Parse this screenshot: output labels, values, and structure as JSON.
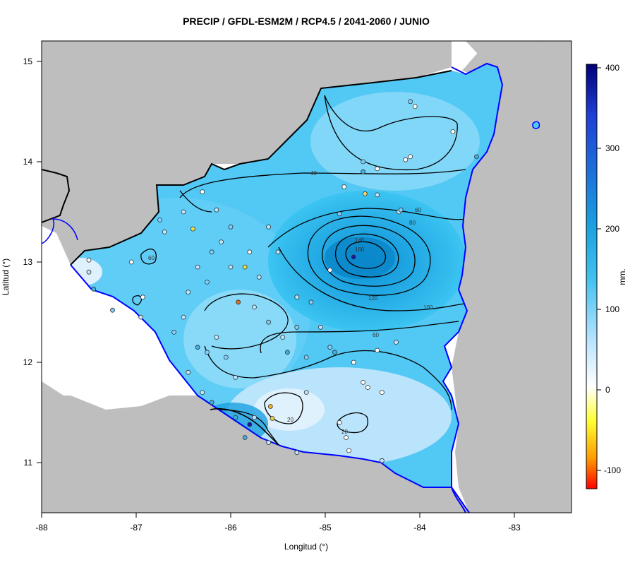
{
  "title": "PRECIP / GFDL-ESM2M / RCP4.5 / 2041-2060 / JUNIO",
  "xlabel": "Longitud (°)",
  "ylabel": "Latitud (°)",
  "x_ticks": [
    "-88",
    "-87",
    "-86",
    "-85",
    "-84",
    "-83"
  ],
  "y_ticks": [
    "11",
    "12",
    "13",
    "14",
    "15"
  ],
  "colorbar": {
    "label": "mm.",
    "ticks": [
      "400",
      "300",
      "200",
      "100",
      "0",
      "-100"
    ],
    "colors": [
      "#00007a",
      "#1f3fd6",
      "#1aa0e0",
      "#3fc0f0",
      "#bfe6ff",
      "#ffffff",
      "#ffff33",
      "#ff9900",
      "#ff0000"
    ]
  },
  "contour_labels": [
    "40",
    "60",
    "80",
    "100",
    "120",
    "140",
    "160",
    "60",
    "20",
    "20",
    "60"
  ],
  "colors": {
    "land_background": "#bebebe",
    "sea_background": "#ffffff",
    "coastline": "#0000ff",
    "border": "#000000"
  },
  "map_data": {
    "xlim": [
      -88,
      -82.4
    ],
    "ylim": [
      10.5,
      15.2
    ],
    "stations": [
      {
        "lon": -84.7,
        "lat": 13.05,
        "color": "#1a1aa0"
      },
      {
        "lon": -85.8,
        "lat": 11.38,
        "color": "#1a1aa0"
      },
      {
        "lon": -85.92,
        "lat": 12.6,
        "color": "#e07020"
      },
      {
        "lon": -85.58,
        "lat": 11.56,
        "color": "#f0b020"
      },
      {
        "lon": -85.56,
        "lat": 11.44,
        "color": "#f0d040"
      },
      {
        "lon": -86.4,
        "lat": 13.33,
        "color": "#f0e040"
      },
      {
        "lon": -85.85,
        "lat": 12.95,
        "color": "#f0e040"
      },
      {
        "lon": -84.58,
        "lat": 13.68,
        "color": "#f0d870"
      },
      {
        "lon": -84.95,
        "lat": 12.92,
        "color": "#ffffff"
      },
      {
        "lon": -84.1,
        "lat": 14.6,
        "color": "#7fd0ff"
      },
      {
        "lon": -84.05,
        "lat": 14.55,
        "color": "#ffffff"
      },
      {
        "lon": -83.65,
        "lat": 14.3,
        "color": "#ffffff"
      },
      {
        "lon": -84.1,
        "lat": 14.05,
        "color": "#ffffff"
      },
      {
        "lon": -84.15,
        "lat": 14.02,
        "color": "#ffffff"
      },
      {
        "lon": -84.6,
        "lat": 14.0,
        "color": "#7fd0ff"
      },
      {
        "lon": -84.45,
        "lat": 13.93,
        "color": "#ffffff"
      },
      {
        "lon": -84.6,
        "lat": 13.9,
        "color": "#3fb0e0"
      },
      {
        "lon": -84.8,
        "lat": 13.75,
        "color": "#ffffff"
      },
      {
        "lon": -84.45,
        "lat": 13.67,
        "color": "#bfe6ff"
      },
      {
        "lon": -84.22,
        "lat": 13.5,
        "color": "#bfe6ff"
      },
      {
        "lon": -84.2,
        "lat": 13.52,
        "color": "#7fd0ff"
      },
      {
        "lon": -84.85,
        "lat": 13.48,
        "color": "#7fd0ff"
      },
      {
        "lon": -83.4,
        "lat": 14.05,
        "color": "#3fb0e0"
      },
      {
        "lon": -87.5,
        "lat": 13.02,
        "color": "#ffffff"
      },
      {
        "lon": -87.5,
        "lat": 12.9,
        "color": "#bfe6ff"
      },
      {
        "lon": -87.45,
        "lat": 12.73,
        "color": "#3fb0e0"
      },
      {
        "lon": -87.05,
        "lat": 13.0,
        "color": "#ffffff"
      },
      {
        "lon": -86.93,
        "lat": 12.65,
        "color": "#ffffff"
      },
      {
        "lon": -86.95,
        "lat": 12.45,
        "color": "#bfe6ff"
      },
      {
        "lon": -87.25,
        "lat": 12.52,
        "color": "#7fd0ff"
      },
      {
        "lon": -86.75,
        "lat": 13.42,
        "color": "#7fd0ff"
      },
      {
        "lon": -86.7,
        "lat": 13.3,
        "color": "#bfe6ff"
      },
      {
        "lon": -86.5,
        "lat": 13.5,
        "color": "#bfe6ff"
      },
      {
        "lon": -86.3,
        "lat": 13.7,
        "color": "#ffffff"
      },
      {
        "lon": -86.15,
        "lat": 13.52,
        "color": "#bfe6ff"
      },
      {
        "lon": -86.0,
        "lat": 13.35,
        "color": "#7fd0ff"
      },
      {
        "lon": -86.1,
        "lat": 13.2,
        "color": "#bfe6ff"
      },
      {
        "lon": -86.2,
        "lat": 13.1,
        "color": "#7fd0ff"
      },
      {
        "lon": -86.35,
        "lat": 12.95,
        "color": "#bfe6ff"
      },
      {
        "lon": -86.0,
        "lat": 12.95,
        "color": "#bfe6ff"
      },
      {
        "lon": -85.8,
        "lat": 13.1,
        "color": "#ffffff"
      },
      {
        "lon": -85.7,
        "lat": 12.85,
        "color": "#bfe6ff"
      },
      {
        "lon": -85.75,
        "lat": 12.55,
        "color": "#bfe6ff"
      },
      {
        "lon": -85.6,
        "lat": 12.4,
        "color": "#7fd0ff"
      },
      {
        "lon": -85.45,
        "lat": 12.25,
        "color": "#bfe6ff"
      },
      {
        "lon": -85.3,
        "lat": 12.35,
        "color": "#7fd0ff"
      },
      {
        "lon": -85.4,
        "lat": 12.1,
        "color": "#3fb0e0"
      },
      {
        "lon": -85.2,
        "lat": 12.05,
        "color": "#7fd0ff"
      },
      {
        "lon": -85.05,
        "lat": 12.35,
        "color": "#bfe6ff"
      },
      {
        "lon": -84.95,
        "lat": 12.15,
        "color": "#7fd0ff"
      },
      {
        "lon": -84.9,
        "lat": 12.1,
        "color": "#3fb0e0"
      },
      {
        "lon": -84.7,
        "lat": 12.0,
        "color": "#ffffff"
      },
      {
        "lon": -84.45,
        "lat": 12.12,
        "color": "#ffffff"
      },
      {
        "lon": -84.25,
        "lat": 12.2,
        "color": "#bfe6ff"
      },
      {
        "lon": -84.6,
        "lat": 11.8,
        "color": "#ffffff"
      },
      {
        "lon": -84.55,
        "lat": 11.75,
        "color": "#ffffff"
      },
      {
        "lon": -84.4,
        "lat": 11.7,
        "color": "#ffffff"
      },
      {
        "lon": -84.85,
        "lat": 11.4,
        "color": "#ffffff"
      },
      {
        "lon": -84.78,
        "lat": 11.25,
        "color": "#ffffff"
      },
      {
        "lon": -84.75,
        "lat": 11.12,
        "color": "#ffffff"
      },
      {
        "lon": -84.4,
        "lat": 11.02,
        "color": "#bfe6ff"
      },
      {
        "lon": -85.2,
        "lat": 11.7,
        "color": "#bfe6ff"
      },
      {
        "lon": -85.75,
        "lat": 11.45,
        "color": "#bfe6ff"
      },
      {
        "lon": -85.95,
        "lat": 11.45,
        "color": "#3fb0e0"
      },
      {
        "lon": -86.2,
        "lat": 11.6,
        "color": "#3fb0e0"
      },
      {
        "lon": -85.85,
        "lat": 11.25,
        "color": "#3fb0e0"
      },
      {
        "lon": -85.6,
        "lat": 11.2,
        "color": "#bfe6ff"
      },
      {
        "lon": -85.3,
        "lat": 11.1,
        "color": "#bfe6ff"
      },
      {
        "lon": -86.45,
        "lat": 11.9,
        "color": "#bfe6ff"
      },
      {
        "lon": -86.25,
        "lat": 12.1,
        "color": "#7fd0ff"
      },
      {
        "lon": -86.15,
        "lat": 12.25,
        "color": "#bfe6ff"
      },
      {
        "lon": -86.35,
        "lat": 12.15,
        "color": "#3fb0e0"
      },
      {
        "lon": -86.05,
        "lat": 12.05,
        "color": "#7fd0ff"
      },
      {
        "lon": -85.95,
        "lat": 11.85,
        "color": "#bfe6ff"
      },
      {
        "lon": -86.3,
        "lat": 11.7,
        "color": "#bfe6ff"
      },
      {
        "lon": -86.5,
        "lat": 12.45,
        "color": "#bfe6ff"
      },
      {
        "lon": -86.6,
        "lat": 12.3,
        "color": "#7fd0ff"
      },
      {
        "lon": -86.45,
        "lat": 12.7,
        "color": "#bfe6ff"
      },
      {
        "lon": -86.25,
        "lat": 12.8,
        "color": "#7fd0ff"
      },
      {
        "lon": -85.5,
        "lat": 13.1,
        "color": "#bfe6ff"
      },
      {
        "lon": -85.6,
        "lat": 13.35,
        "color": "#bfe6ff"
      },
      {
        "lon": -85.3,
        "lat": 12.65,
        "color": "#bfe6ff"
      },
      {
        "lon": -85.15,
        "lat": 12.6,
        "color": "#7fd0ff"
      }
    ]
  }
}
